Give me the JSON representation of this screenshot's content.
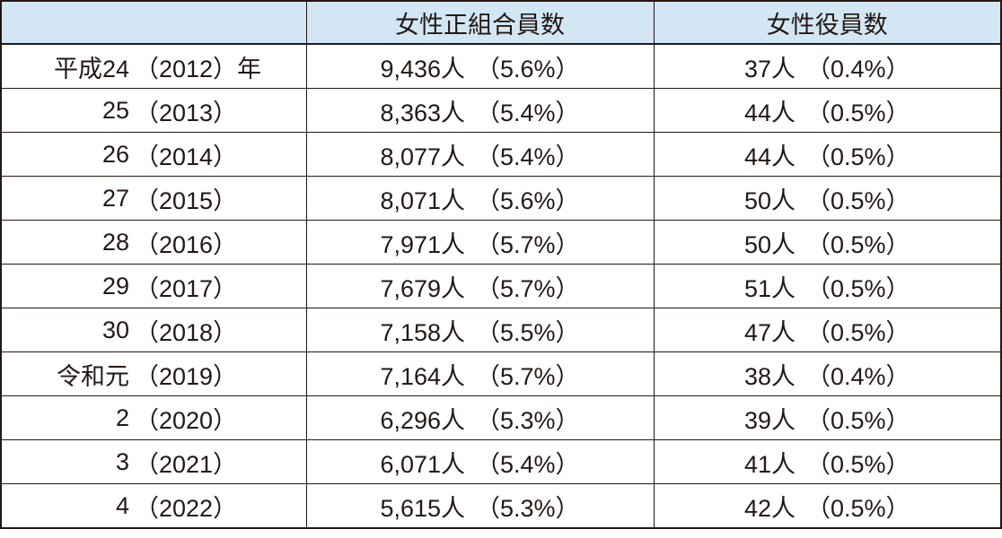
{
  "colors": {
    "header_bg": "#d3e6f4",
    "border": "#231815",
    "text": "#231815"
  },
  "table": {
    "headers": [
      "",
      "女性正組合員数",
      "女性役員数"
    ],
    "rows": [
      {
        "era": "平成24",
        "year_paren": "（2012）",
        "year_suffix": "年",
        "members_count": "9,436人",
        "members_pct": "（5.6%）",
        "officers_count": "37人",
        "officers_pct": "（0.4%）"
      },
      {
        "era": "25",
        "year_paren": "（2013）",
        "year_suffix": "",
        "members_count": "8,363人",
        "members_pct": "（5.4%）",
        "officers_count": "44人",
        "officers_pct": "（0.5%）"
      },
      {
        "era": "26",
        "year_paren": "（2014）",
        "year_suffix": "",
        "members_count": "8,077人",
        "members_pct": "（5.4%）",
        "officers_count": "44人",
        "officers_pct": "（0.5%）"
      },
      {
        "era": "27",
        "year_paren": "（2015）",
        "year_suffix": "",
        "members_count": "8,071人",
        "members_pct": "（5.6%）",
        "officers_count": "50人",
        "officers_pct": "（0.5%）"
      },
      {
        "era": "28",
        "year_paren": "（2016）",
        "year_suffix": "",
        "members_count": "7,971人",
        "members_pct": "（5.7%）",
        "officers_count": "50人",
        "officers_pct": "（0.5%）"
      },
      {
        "era": "29",
        "year_paren": "（2017）",
        "year_suffix": "",
        "members_count": "7,679人",
        "members_pct": "（5.7%）",
        "officers_count": "51人",
        "officers_pct": "（0.5%）"
      },
      {
        "era": "30",
        "year_paren": "（2018）",
        "year_suffix": "",
        "members_count": "7,158人",
        "members_pct": "（5.5%）",
        "officers_count": "47人",
        "officers_pct": "（0.5%）"
      },
      {
        "era": "令和元",
        "year_paren": "（2019）",
        "year_suffix": "",
        "members_count": "7,164人",
        "members_pct": "（5.7%）",
        "officers_count": "38人",
        "officers_pct": "（0.4%）"
      },
      {
        "era": "2",
        "year_paren": "（2020）",
        "year_suffix": "",
        "members_count": "6,296人",
        "members_pct": "（5.3%）",
        "officers_count": "39人",
        "officers_pct": "（0.5%）"
      },
      {
        "era": "3",
        "year_paren": "（2021）",
        "year_suffix": "",
        "members_count": "6,071人",
        "members_pct": "（5.4%）",
        "officers_count": "41人",
        "officers_pct": "（0.5%）"
      },
      {
        "era": "4",
        "year_paren": "（2022）",
        "year_suffix": "",
        "members_count": "5,615人",
        "members_pct": "（5.3%）",
        "officers_count": "42人",
        "officers_pct": "（0.5%）"
      }
    ]
  }
}
